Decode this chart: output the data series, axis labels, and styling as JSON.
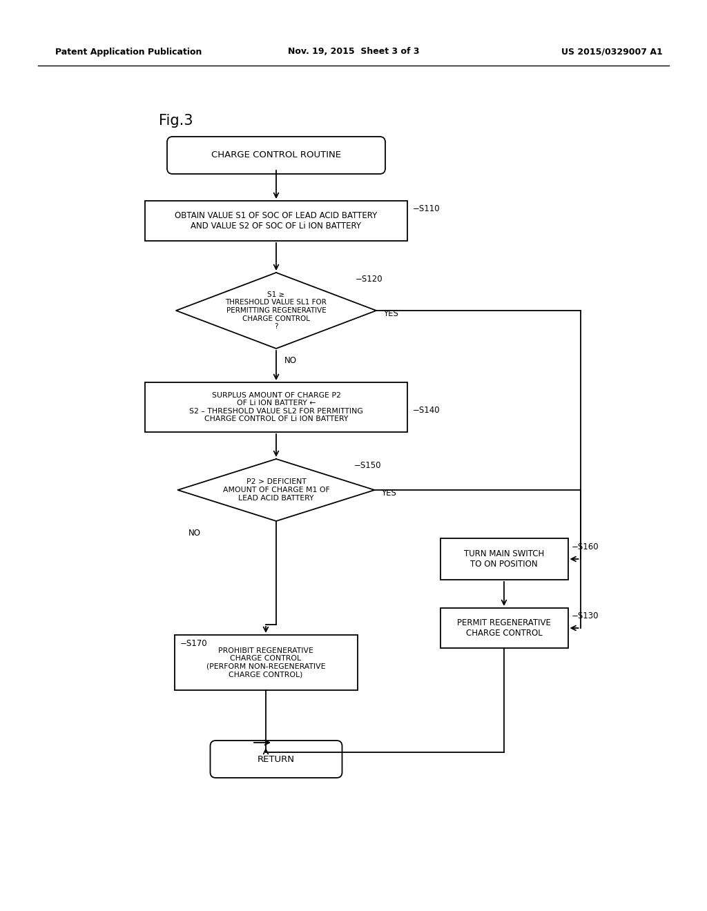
{
  "bg_color": "#ffffff",
  "header_left": "Patent Application Publication",
  "header_center": "Nov. 19, 2015  Sheet 3 of 3",
  "header_right": "US 2015/0329007 A1",
  "fig_label": "Fig.3"
}
